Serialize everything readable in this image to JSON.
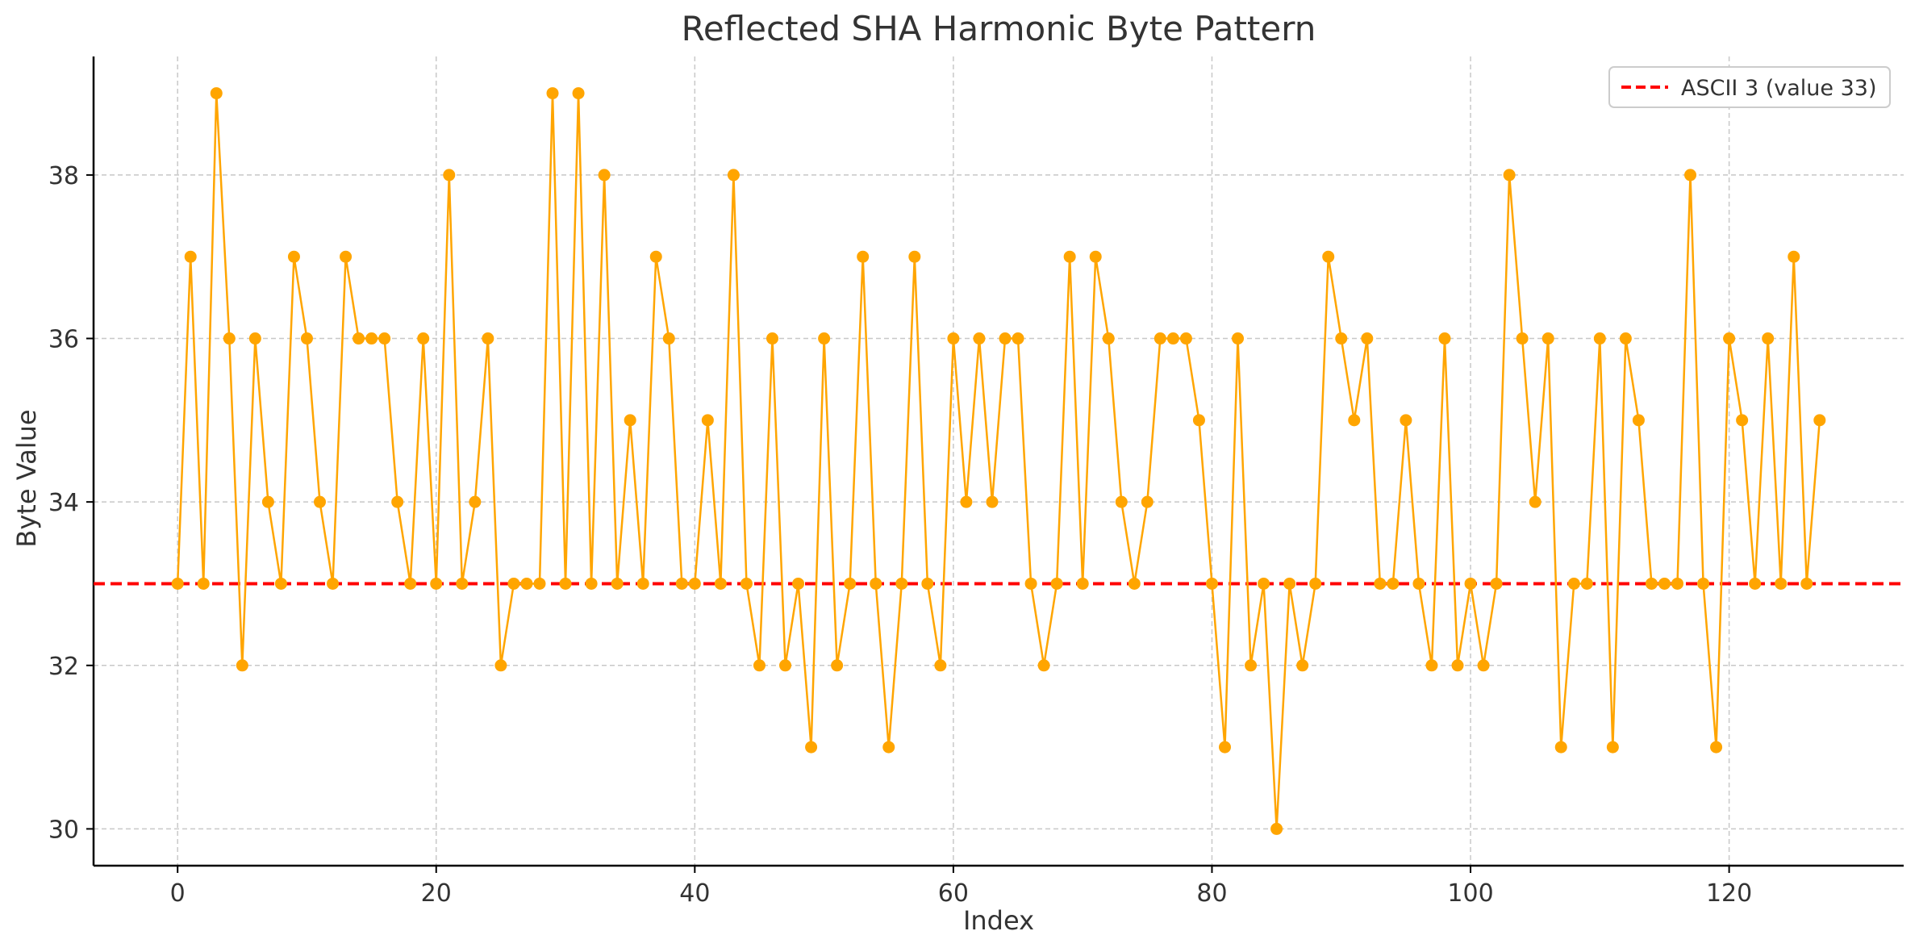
{
  "colors": {
    "series": "#FFA500",
    "reference": "#FF0000",
    "grid": "#c8c8c8",
    "axis": "#000000"
  },
  "chart_data": {
    "type": "line",
    "title": "Reflected SHA Harmonic Byte Pattern",
    "xlabel": "Index",
    "ylabel": "Byte Value",
    "xlim": [
      -6.5,
      133.5
    ],
    "ylim": [
      29.55,
      39.45
    ],
    "xticks": [
      0,
      20,
      40,
      60,
      80,
      100,
      120
    ],
    "yticks": [
      30,
      32,
      34,
      36,
      38
    ],
    "grid": true,
    "legend_position": "top-right",
    "series": [
      {
        "marker": "circle",
        "x_start": 0,
        "values": [
          33,
          37,
          33,
          39,
          36,
          32,
          36,
          34,
          33,
          37,
          36,
          34,
          33,
          37,
          36,
          36,
          36,
          34,
          33,
          36,
          33,
          38,
          33,
          34,
          36,
          32,
          33,
          33,
          33,
          39,
          33,
          39,
          33,
          38,
          33,
          35,
          33,
          37,
          36,
          33,
          33,
          35,
          33,
          38,
          33,
          32,
          36,
          32,
          33,
          31,
          36,
          32,
          33,
          37,
          33,
          31,
          33,
          37,
          33,
          32,
          36,
          34,
          36,
          34,
          36,
          36,
          33,
          32,
          33,
          37,
          33,
          37,
          36,
          34,
          33,
          34,
          36,
          36,
          36,
          35,
          33,
          31,
          36,
          32,
          33,
          30,
          33,
          32,
          33,
          37,
          36,
          35,
          36,
          33,
          33,
          35,
          33,
          32,
          36,
          32,
          33,
          32,
          33,
          38,
          36,
          34,
          36,
          31,
          33,
          33,
          36,
          31,
          36,
          35,
          33,
          33,
          33,
          38,
          33,
          31,
          36,
          35,
          33,
          36,
          33,
          37,
          33,
          35
        ]
      }
    ],
    "reference_lines": [
      {
        "name": "ASCII 3 (value 33)",
        "y": 33,
        "style": "dashed"
      }
    ]
  }
}
